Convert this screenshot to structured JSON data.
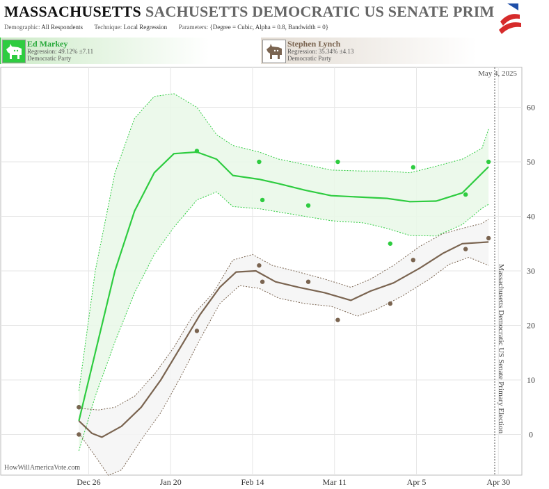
{
  "header": {
    "title_main": "MASSACHUSETTS",
    "title_shadow": "SACHUSETTS DEMOCRATIC US SENATE PRIM",
    "meta": [
      {
        "label": "Demographic:",
        "value": "All Respondents"
      },
      {
        "label": "Technique:",
        "value": "Local Regression"
      },
      {
        "label": "Parameters:",
        "value": "{Degree = Cubic, Alpha = 0.8, Bandwidth = 0}"
      }
    ],
    "flag_icon": "us-flag-icon"
  },
  "candidates": [
    {
      "name": "Ed Markey",
      "regression": "Regression: 49.12% ±7.11",
      "party": "Democratic Party",
      "icon": "donkey-icon",
      "color": "#2ecc40"
    },
    {
      "name": "Stephen Lynch",
      "regression": "Regression: 35.34% ±4.13",
      "party": "Democratic Party",
      "icon": "donkey-icon",
      "color": "#7a6450"
    }
  ],
  "date_label": "May 4, 2025",
  "credit": "HowWillAmericaVote.com",
  "election_label": "Massachusetts Democratic US Senate Primary Election",
  "chart_data": {
    "type": "line",
    "x_tick_labels": [
      "Dec 26",
      "Jan 20",
      "Feb 14",
      "Mar 11",
      "Apr 5",
      "Apr 30"
    ],
    "y_ticks": [
      0,
      10,
      20,
      30,
      40,
      50,
      60
    ],
    "ylim": [
      -7.5,
      66.5
    ],
    "grid": true,
    "series": [
      {
        "name": "Ed Markey",
        "color": "#2ecc40",
        "points": [
          [
            -3,
            5
          ],
          [
            33,
            52
          ],
          [
            52,
            50
          ],
          [
            53,
            43
          ],
          [
            67,
            42
          ],
          [
            76,
            50
          ],
          [
            92,
            35
          ],
          [
            99,
            49
          ],
          [
            115,
            44
          ],
          [
            122,
            50
          ]
        ],
        "trend": [
          [
            -3,
            2.5
          ],
          [
            2,
            15
          ],
          [
            8,
            30
          ],
          [
            14,
            41
          ],
          [
            20,
            48
          ],
          [
            26,
            51.5
          ],
          [
            33,
            51.8
          ],
          [
            39,
            50.5
          ],
          [
            44,
            47.5
          ],
          [
            52,
            46.8
          ],
          [
            58,
            46
          ],
          [
            66,
            44.8
          ],
          [
            74,
            43.8
          ],
          [
            84,
            43.5
          ],
          [
            91,
            43.3
          ],
          [
            98,
            42.7
          ],
          [
            106,
            42.8
          ],
          [
            114,
            44.3
          ],
          [
            122,
            49.1
          ]
        ],
        "upper": [
          [
            -3,
            8
          ],
          [
            2,
            30
          ],
          [
            8,
            48
          ],
          [
            14,
            58
          ],
          [
            20,
            62
          ],
          [
            26,
            62.5
          ],
          [
            33,
            60
          ],
          [
            39,
            55
          ],
          [
            44,
            53
          ],
          [
            52,
            51.8
          ],
          [
            58,
            50.5
          ],
          [
            66,
            49.5
          ],
          [
            74,
            48.5
          ],
          [
            84,
            48.3
          ],
          [
            91,
            48.3
          ],
          [
            98,
            48
          ],
          [
            106,
            49.2
          ],
          [
            114,
            50.5
          ],
          [
            120,
            52.5
          ],
          [
            122,
            56
          ]
        ],
        "lower": [
          [
            -3,
            -3
          ],
          [
            2,
            7
          ],
          [
            8,
            17
          ],
          [
            14,
            26
          ],
          [
            20,
            33
          ],
          [
            26,
            38
          ],
          [
            33,
            43
          ],
          [
            39,
            44.5
          ],
          [
            44,
            41.8
          ],
          [
            52,
            41.4
          ],
          [
            58,
            40.8
          ],
          [
            66,
            40
          ],
          [
            74,
            39.2
          ],
          [
            84,
            38.8
          ],
          [
            91,
            37.8
          ],
          [
            98,
            36.5
          ],
          [
            106,
            36.4
          ],
          [
            114,
            38.5
          ],
          [
            120,
            41.5
          ],
          [
            122,
            42.2
          ]
        ]
      },
      {
        "name": "Stephen Lynch",
        "color": "#7a6450",
        "points": [
          [
            -3,
            5
          ],
          [
            -3,
            0
          ],
          [
            33,
            19
          ],
          [
            52,
            31
          ],
          [
            53,
            28
          ],
          [
            67,
            28
          ],
          [
            76,
            21
          ],
          [
            92,
            24
          ],
          [
            99,
            32
          ],
          [
            115,
            34
          ],
          [
            122,
            36
          ]
        ],
        "trend": [
          [
            -3,
            2.5
          ],
          [
            1,
            0.2
          ],
          [
            4,
            -0.5
          ],
          [
            10,
            1.5
          ],
          [
            16,
            5
          ],
          [
            22,
            10
          ],
          [
            28,
            16
          ],
          [
            34,
            22
          ],
          [
            40,
            27
          ],
          [
            45,
            29.8
          ],
          [
            51,
            30
          ],
          [
            57,
            28
          ],
          [
            64,
            27
          ],
          [
            72,
            26
          ],
          [
            80,
            24.6
          ],
          [
            86,
            26.3
          ],
          [
            93,
            27.8
          ],
          [
            101,
            30.5
          ],
          [
            108,
            33.2
          ],
          [
            114,
            35
          ],
          [
            122,
            35.3
          ]
        ],
        "upper": [
          [
            -3,
            4.8
          ],
          [
            3,
            4.5
          ],
          [
            8,
            5
          ],
          [
            14,
            7
          ],
          [
            20,
            11
          ],
          [
            26,
            16
          ],
          [
            32,
            22
          ],
          [
            38,
            26
          ],
          [
            44,
            32
          ],
          [
            50,
            33
          ],
          [
            56,
            31
          ],
          [
            64,
            29.8
          ],
          [
            72,
            28.5
          ],
          [
            80,
            27
          ],
          [
            86,
            28.5
          ],
          [
            93,
            31
          ],
          [
            101,
            34.5
          ],
          [
            108,
            36.8
          ],
          [
            114,
            37.8
          ],
          [
            120,
            38.7
          ],
          [
            122,
            39.5
          ]
        ],
        "lower": [
          [
            -3,
            0.2
          ],
          [
            2,
            -4
          ],
          [
            6,
            -7.5
          ],
          [
            10,
            -6.5
          ],
          [
            16,
            -1
          ],
          [
            22,
            4
          ],
          [
            28,
            10.5
          ],
          [
            34,
            17.5
          ],
          [
            40,
            24
          ],
          [
            46,
            27.3
          ],
          [
            52,
            26.8
          ],
          [
            58,
            25
          ],
          [
            66,
            24
          ],
          [
            74,
            23.5
          ],
          [
            82,
            21.7
          ],
          [
            88,
            23
          ],
          [
            96,
            25.5
          ],
          [
            104,
            28.5
          ],
          [
            110,
            31.2
          ],
          [
            116,
            32.5
          ],
          [
            122,
            31
          ]
        ]
      }
    ]
  }
}
